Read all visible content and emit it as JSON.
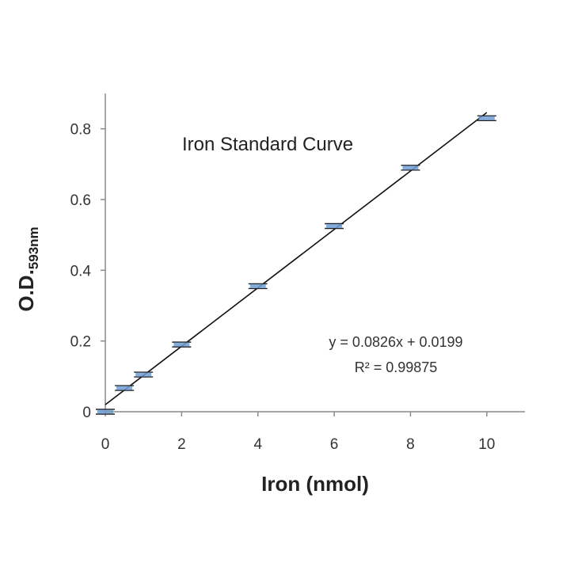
{
  "chart_data": {
    "type": "scatter",
    "title": "Iron Standard Curve",
    "xlabel": "Iron (nmol)",
    "ylabel": "O.D.",
    "ylabel_subscript": "593nm",
    "xlim": [
      0,
      11
    ],
    "ylim": [
      0,
      0.9
    ],
    "xticks": [
      "0",
      "2",
      "4",
      "6",
      "8",
      "10"
    ],
    "yticks": [
      "0",
      "0.2",
      "0.4",
      "0.6",
      "0.8"
    ],
    "x_tick_values": [
      0,
      2,
      4,
      6,
      8,
      10
    ],
    "y_tick_values": [
      0,
      0.2,
      0.4,
      0.6,
      0.8
    ],
    "grid": false,
    "series": [
      {
        "points": [
          {
            "x": 0,
            "y": 0.0
          },
          {
            "x": 0.5,
            "y": 0.067
          },
          {
            "x": 1,
            "y": 0.105
          },
          {
            "x": 2,
            "y": 0.19
          },
          {
            "x": 4,
            "y": 0.355
          },
          {
            "x": 6,
            "y": 0.525
          },
          {
            "x": 8,
            "y": 0.69
          },
          {
            "x": 10,
            "y": 0.83
          }
        ],
        "marker_color": "#6f9fd6",
        "errorbar_color": "#222222"
      }
    ],
    "trendline": {
      "slope": 0.0826,
      "intercept": 0.0199,
      "x_range": [
        0,
        10
      ],
      "color": "#111111"
    },
    "annotations": {
      "equation": "y = 0.0826x + 0.0199",
      "r_squared": "R² = 0.99875"
    }
  }
}
